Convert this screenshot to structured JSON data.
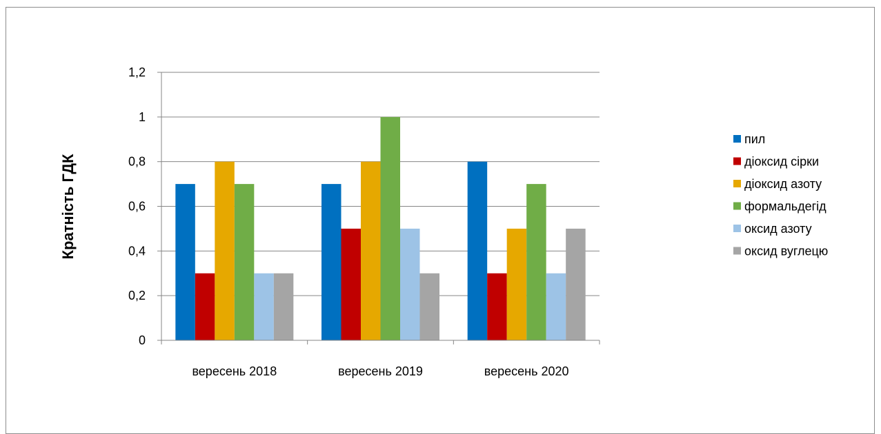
{
  "chart_data": {
    "type": "bar",
    "title": "",
    "xlabel": "",
    "ylabel": "Кратність ГДК",
    "categories": [
      "вересень 2018",
      "вересень 2019",
      "вересень 2020"
    ],
    "ylim": [
      0,
      1.2
    ],
    "yticks": [
      "0",
      "0,2",
      "0,4",
      "0,6",
      "0,8",
      "1",
      "1,2"
    ],
    "grid": true,
    "legend_position": "right",
    "series": [
      {
        "name": "пил",
        "color": "#0070c0",
        "values": [
          0.7,
          0.7,
          0.8
        ]
      },
      {
        "name": "діоксид сірки",
        "color": "#c00000",
        "values": [
          0.3,
          0.5,
          0.3
        ]
      },
      {
        "name": "діоксид азоту",
        "color": "#e6a800",
        "values": [
          0.8,
          0.8,
          0.5
        ]
      },
      {
        "name": "формальдегід",
        "color": "#70ad47",
        "values": [
          0.7,
          1.0,
          0.7
        ]
      },
      {
        "name": "оксид азоту",
        "color": "#9dc3e6",
        "values": [
          0.3,
          0.5,
          0.3
        ]
      },
      {
        "name": "оксид вуглецю",
        "color": "#a5a5a5",
        "values": [
          0.3,
          0.3,
          0.5
        ]
      }
    ]
  }
}
